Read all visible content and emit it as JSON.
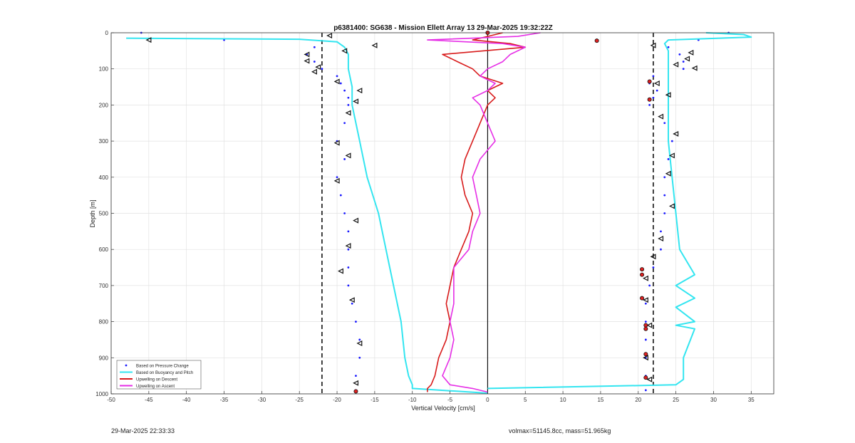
{
  "chart_data": {
    "type": "line",
    "title": "p6381400: SG638 - Mission Ellett Array 13 29-Mar-2025 19:32:22Z",
    "xlabel": "Vertical Velocity [cm/s]",
    "ylabel": "Depth [m]",
    "xlim": [
      -50,
      38
    ],
    "ylim": [
      1000,
      0
    ],
    "y_reversed": true,
    "grid": true,
    "x_ticks": [
      -50,
      -45,
      -40,
      -35,
      -30,
      -25,
      -20,
      -15,
      -10,
      -5,
      0,
      5,
      10,
      15,
      20,
      25,
      30,
      35
    ],
    "y_ticks": [
      0,
      100,
      200,
      300,
      400,
      500,
      600,
      700,
      800,
      900,
      1000
    ],
    "reference_lines": [
      {
        "x": -22,
        "style": "dashed",
        "color": "#000000"
      },
      {
        "x": 22,
        "style": "dashed",
        "color": "#000000"
      },
      {
        "x": 0,
        "style": "solid",
        "color": "#000000"
      }
    ],
    "legend_position": "bottom-left",
    "series": [
      {
        "name": "Based on Pressure Change",
        "kind": "points",
        "color": "#1a1aff",
        "branches": [
          {
            "depth": [
              0,
              20,
              40,
              60,
              80,
              100,
              120,
              140,
              160,
              180,
              200,
              250,
              300,
              350,
              400,
              450,
              500,
              550,
              600,
              650,
              700,
              750,
              800,
              850,
              900,
              950,
              990
            ],
            "x": [
              -46,
              -35,
              -23,
              -24,
              -23,
              -22,
              -20,
              -19.5,
              -19,
              -18.5,
              -18.5,
              -19,
              -20,
              -19,
              -20,
              -19.5,
              -19,
              -18.5,
              -18.5,
              -18.5,
              -18.5,
              -18,
              -17.5,
              -17,
              -17,
              -17.5,
              -17.5
            ]
          },
          {
            "depth": [
              0,
              20,
              40,
              60,
              80,
              100,
              120,
              140,
              160,
              180,
              200,
              250,
              300,
              350,
              400,
              450,
              500,
              550,
              600,
              650,
              700,
              750,
              800,
              850,
              900,
              950,
              990
            ],
            "x": [
              32,
              28,
              24,
              25.5,
              26,
              26,
              22,
              21.5,
              22.5,
              22,
              21.5,
              23.5,
              24.5,
              24,
              23.5,
              23.5,
              23.5,
              23,
              23,
              22,
              21.5,
              21,
              21,
              21,
              21,
              21,
              21
            ]
          }
        ]
      },
      {
        "name": "Based on Buoyancy and Pitch",
        "kind": "line",
        "color": "#33e5f0",
        "branches": [
          {
            "depth": [
              15,
              18,
              25,
              40,
              60,
              100,
              150,
              200,
              250,
              300,
              400,
              500,
              600,
              700,
              800,
              900,
              950,
              975,
              985,
              998
            ],
            "x": [
              -48,
              -25,
              -20,
              -19,
              -18.5,
              -18.5,
              -18,
              -18,
              -17.5,
              -17,
              -16,
              -14.5,
              -13.5,
              -12.5,
              -11.5,
              -11,
              -10.5,
              -10,
              -10,
              0
            ]
          },
          {
            "depth": [
              0,
              5,
              12,
              20,
              30,
              50,
              100,
              150,
              200,
              300,
              400,
              500,
              600,
              670,
              700,
              735,
              760,
              800,
              810,
              820,
              900,
              960,
              975,
              985
            ],
            "x": [
              29,
              34,
              35,
              24,
              23.5,
              24,
              24,
              24,
              24,
              24,
              24.5,
              25,
              25.5,
              27.5,
              25,
              27.5,
              25,
              27.5,
              25,
              27.5,
              26,
              26,
              25,
              0
            ]
          }
        ]
      },
      {
        "name": "Upwelling on Descent",
        "kind": "line",
        "color": "#d81b1b",
        "depth": [
          0,
          10,
          20,
          30,
          40,
          60,
          80,
          100,
          120,
          140,
          160,
          180,
          200,
          250,
          300,
          350,
          400,
          450,
          500,
          550,
          600,
          650,
          700,
          750,
          800,
          850,
          900,
          950,
          975,
          985,
          995
        ],
        "x": [
          2,
          0,
          -2,
          3,
          5,
          -6,
          -4,
          -2,
          -1,
          2,
          0,
          1,
          0,
          -1,
          -2,
          -3,
          -3.5,
          -3,
          -2,
          -2.5,
          -3.5,
          -4.5,
          -5,
          -5.5,
          -5,
          -5.5,
          -6.5,
          -7,
          -7.5,
          -8,
          -8
        ]
      },
      {
        "name": "Upwelling on Ascent",
        "kind": "line",
        "color": "#e62ee6",
        "depth": [
          0,
          10,
          20,
          30,
          40,
          60,
          80,
          100,
          120,
          140,
          160,
          180,
          200,
          250,
          300,
          350,
          400,
          450,
          500,
          550,
          600,
          650,
          700,
          750,
          800,
          850,
          900,
          950,
          975,
          985,
          995
        ],
        "x": [
          7,
          4,
          -8,
          2,
          5,
          3,
          2,
          0,
          -1,
          1,
          0,
          -2,
          -1,
          0,
          1,
          -1,
          -2,
          -1.5,
          -1,
          -2,
          -2.5,
          -4.5,
          -4.5,
          -4.5,
          -5,
          -4.5,
          -5,
          -6,
          -5,
          -2,
          0
        ]
      }
    ],
    "markers": {
      "open_triangles": [
        {
          "depth": 8,
          "x": -21
        },
        {
          "depth": 20,
          "x": -45
        },
        {
          "depth": 35,
          "x": -15
        },
        {
          "depth": 50,
          "x": -19
        },
        {
          "depth": 60,
          "x": -24
        },
        {
          "depth": 78,
          "x": -24
        },
        {
          "depth": 95,
          "x": -22.5
        },
        {
          "depth": 108,
          "x": -23
        },
        {
          "depth": 135,
          "x": -20
        },
        {
          "depth": 160,
          "x": -17
        },
        {
          "depth": 190,
          "x": -17.5
        },
        {
          "depth": 222,
          "x": -18.5
        },
        {
          "depth": 305,
          "x": -20
        },
        {
          "depth": 340,
          "x": -18.5
        },
        {
          "depth": 410,
          "x": -20
        },
        {
          "depth": 520,
          "x": -17.5
        },
        {
          "depth": 590,
          "x": -18.5
        },
        {
          "depth": 660,
          "x": -19.5
        },
        {
          "depth": 740,
          "x": -18
        },
        {
          "depth": 860,
          "x": -17
        },
        {
          "depth": 970,
          "x": -17.5
        },
        {
          "depth": 35,
          "x": 22
        },
        {
          "depth": 55,
          "x": 27
        },
        {
          "depth": 72,
          "x": 26.5
        },
        {
          "depth": 88,
          "x": 25
        },
        {
          "depth": 98,
          "x": 27.5
        },
        {
          "depth": 140,
          "x": 22.5
        },
        {
          "depth": 172,
          "x": 24
        },
        {
          "depth": 232,
          "x": 23
        },
        {
          "depth": 280,
          "x": 25
        },
        {
          "depth": 340,
          "x": 24.5
        },
        {
          "depth": 390,
          "x": 24
        },
        {
          "depth": 480,
          "x": 24.5
        },
        {
          "depth": 570,
          "x": 23
        },
        {
          "depth": 620,
          "x": 22
        },
        {
          "depth": 680,
          "x": 21
        },
        {
          "depth": 740,
          "x": 21
        },
        {
          "depth": 810,
          "x": 21.5
        },
        {
          "depth": 900,
          "x": 21
        },
        {
          "depth": 960,
          "x": 21.5
        }
      ],
      "red_dots": [
        {
          "depth": 0,
          "x": 0
        },
        {
          "depth": 22,
          "x": 14.5
        },
        {
          "depth": 135,
          "x": 21.5
        },
        {
          "depth": 185,
          "x": 21.5
        },
        {
          "depth": 655,
          "x": 20.5
        },
        {
          "depth": 670,
          "x": 20.5
        },
        {
          "depth": 735,
          "x": 20.5
        },
        {
          "depth": 810,
          "x": 21
        },
        {
          "depth": 820,
          "x": 21
        },
        {
          "depth": 890,
          "x": 21
        },
        {
          "depth": 955,
          "x": 21
        },
        {
          "depth": 993,
          "x": -17.5
        }
      ]
    }
  },
  "footer": {
    "timestamp": "29-Mar-2025 22:33:33",
    "mass_info": "volmax=51145.8cc, mass=51.965kg"
  }
}
